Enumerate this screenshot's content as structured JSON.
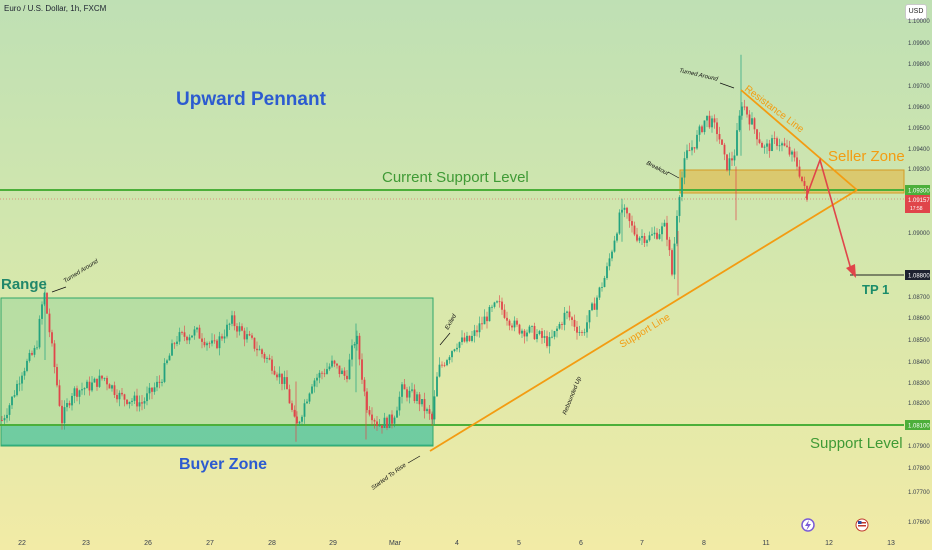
{
  "header": {
    "symbol": "Euro / U.S. Dollar, 1h, FXCM",
    "currency": "USD"
  },
  "colors": {
    "up_candle": "#22a27f",
    "down_candle": "#e0454a",
    "support_line": "#4caf3a",
    "trend_line": "#f39c12",
    "zone_green": "#5fc99a",
    "zone_orange": "#e6b23a",
    "arrow": "#e0454a"
  },
  "chart_data": {
    "type": "candlestick",
    "x_categories": [
      "22",
      "23",
      "26",
      "27",
      "28",
      "29",
      "Mar",
      "4",
      "5",
      "6",
      "7",
      "8",
      "11",
      "12",
      "13"
    ],
    "y_ticks": [
      "1.07600",
      "1.07700",
      "1.07800",
      "1.07900",
      "1.08000",
      "1.08200",
      "1.08300",
      "1.08400",
      "1.08500",
      "1.08600",
      "1.08700",
      "1.09000",
      "1.09300",
      "1.09400",
      "1.09500",
      "1.09600",
      "1.09700",
      "1.09800",
      "1.09900",
      "1.10000"
    ],
    "ylim": [
      1.076,
      1.1005
    ],
    "price_labels": {
      "current_support": "1.09300",
      "last_price": "1.09157",
      "countdown": "17:58",
      "tp": "1.08800",
      "support": "1.08100"
    },
    "levels": {
      "current_support": 1.093,
      "support": 1.081,
      "tp": 1.088,
      "last_price": 1.09157
    },
    "texts": {
      "title": "Upward Pennant",
      "range": "Range",
      "buyer_zone": "Buyer Zone",
      "current_support_level": "Current Support Level",
      "seller_zone": "Seller Zone",
      "support_level": "Support Level",
      "tp1": "TP 1",
      "support_line": "Support Line",
      "resistance_line": "Resistance Line",
      "turned_around_1": "Turned Around",
      "turned_around_2": "Turned Around",
      "exited": "Exited",
      "started_to_rise": "Started To Rise",
      "rebounded_up": "Rebounded Up",
      "breakout": "Breakout"
    },
    "grid": false,
    "legend": "none"
  }
}
